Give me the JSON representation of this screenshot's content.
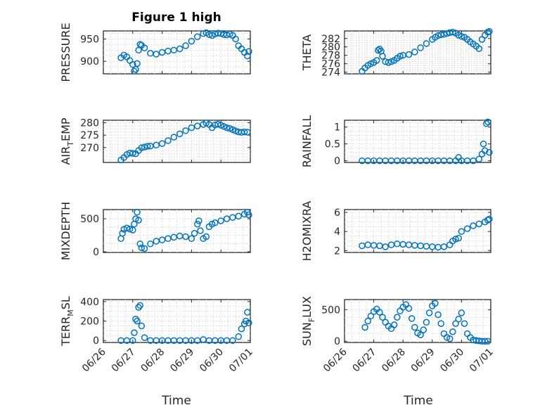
{
  "figure": {
    "title": "Figure 1 high",
    "marker_color": "#0072BD",
    "xtick_labels": [
      "06/26",
      "06/27",
      "06/28",
      "06/29",
      "06/30",
      "07/01"
    ],
    "xlabel": "Time"
  },
  "chart_data": [
    {
      "type": "scatter",
      "ylabel": "PRESSURE",
      "ylim": [
        872,
        968
      ],
      "yticks": [
        900,
        950
      ],
      "xlim": [
        0,
        5
      ],
      "x": [
        0.6,
        0.7,
        0.8,
        0.9,
        1.0,
        1.05,
        1.1,
        1.15,
        1.2,
        1.25,
        1.3,
        1.4,
        1.6,
        1.8,
        2.0,
        2.2,
        2.4,
        2.6,
        2.8,
        3.0,
        3.2,
        3.4,
        3.5,
        3.6,
        3.7,
        3.8,
        3.9,
        4.0,
        4.1,
        4.2,
        4.3,
        4.4,
        4.5,
        4.6,
        4.7,
        4.8,
        4.9,
        4.95
      ],
      "y": [
        908,
        914,
        910,
        902,
        893,
        878,
        882,
        895,
        925,
        938,
        936,
        930,
        918,
        916,
        920,
        923,
        925,
        928,
        935,
        945,
        955,
        962,
        964,
        960,
        958,
        961,
        963,
        962,
        960,
        959,
        961,
        958,
        950,
        935,
        928,
        920,
        912,
        922
      ]
    },
    {
      "type": "scatter",
      "ylabel": "THETA",
      "ylim": [
        273.6,
        283.8
      ],
      "yticks": [
        274,
        276,
        278,
        280,
        282
      ],
      "xlim": [
        0,
        5
      ],
      "x": [
        0.6,
        0.7,
        0.8,
        0.9,
        1.0,
        1.1,
        1.15,
        1.2,
        1.25,
        1.3,
        1.4,
        1.5,
        1.6,
        1.7,
        1.8,
        1.9,
        2.0,
        2.2,
        2.4,
        2.6,
        2.8,
        3.0,
        3.1,
        3.2,
        3.3,
        3.4,
        3.5,
        3.6,
        3.7,
        3.8,
        3.9,
        4.0,
        4.1,
        4.2,
        4.3,
        4.4,
        4.5,
        4.6,
        4.7,
        4.8,
        4.9,
        4.95
      ],
      "y": [
        274.2,
        275.0,
        275.6,
        276.0,
        276.3,
        276.8,
        279.2,
        279.5,
        279.0,
        277.8,
        276.5,
        276.3,
        276.5,
        276.8,
        277.3,
        277.8,
        278.0,
        278.2,
        278.8,
        279.8,
        280.8,
        281.8,
        282.3,
        282.7,
        282.9,
        283.0,
        283.2,
        283.4,
        283.5,
        283.3,
        282.8,
        282.5,
        282.3,
        281.8,
        281.2,
        280.7,
        280.2,
        279.6,
        281.8,
        282.8,
        283.5,
        283.7
      ]
    },
    {
      "type": "scatter",
      "ylabel": "AIR_TEMP",
      "ylim": [
        264,
        281
      ],
      "yticks": [
        270,
        275,
        280
      ],
      "xlim": [
        0,
        5
      ],
      "x": [
        0.6,
        0.7,
        0.8,
        0.9,
        1.0,
        1.1,
        1.2,
        1.3,
        1.4,
        1.5,
        1.6,
        1.8,
        2.0,
        2.2,
        2.4,
        2.6,
        2.8,
        3.0,
        3.2,
        3.4,
        3.5,
        3.6,
        3.7,
        3.8,
        3.9,
        4.0,
        4.1,
        4.2,
        4.3,
        4.4,
        4.5,
        4.6,
        4.7,
        4.8,
        4.9
      ],
      "y": [
        265.0,
        266.0,
        267.2,
        267.8,
        267.7,
        267.5,
        268.8,
        269.9,
        270.2,
        270.5,
        270.6,
        271.0,
        271.6,
        272.8,
        274.2,
        275.5,
        276.8,
        278.0,
        278.7,
        279.3,
        279.9,
        279.3,
        278.0,
        279.1,
        279.4,
        279.0,
        278.5,
        278.0,
        277.7,
        277.2,
        276.7,
        276.3,
        276.1,
        276.3,
        276.2
      ]
    },
    {
      "type": "scatter",
      "ylabel": "RAINFALL",
      "ylim": [
        -0.05,
        1.2
      ],
      "yticks": [
        0,
        0.5,
        1
      ],
      "xlim": [
        0,
        5
      ],
      "x": [
        0.6,
        0.8,
        1.0,
        1.2,
        1.4,
        1.6,
        1.8,
        2.0,
        2.2,
        2.4,
        2.6,
        2.8,
        3.0,
        3.2,
        3.4,
        3.6,
        3.8,
        3.9,
        4.0,
        4.2,
        4.4,
        4.6,
        4.7,
        4.75,
        4.8,
        4.85,
        4.9,
        4.95
      ],
      "y": [
        0,
        0,
        0,
        0,
        0,
        0,
        0,
        0,
        0,
        0,
        0,
        0,
        0,
        0,
        0,
        0,
        0,
        0.1,
        0,
        0,
        0,
        0.05,
        0.2,
        0.5,
        0.3,
        1.1,
        1.15,
        0.25
      ]
    },
    {
      "type": "scatter",
      "ylabel": "MIXDEPTH",
      "ylim": [
        -10,
        640
      ],
      "yticks": [
        0,
        500
      ],
      "xlim": [
        0,
        5
      ],
      "x": [
        0.6,
        0.65,
        0.7,
        0.8,
        0.9,
        1.0,
        1.05,
        1.1,
        1.15,
        1.2,
        1.25,
        1.3,
        1.4,
        1.6,
        1.8,
        2.0,
        2.2,
        2.4,
        2.6,
        2.8,
        3.0,
        3.1,
        3.2,
        3.25,
        3.3,
        3.4,
        3.5,
        3.6,
        3.7,
        3.8,
        4.0,
        4.2,
        4.4,
        4.6,
        4.8,
        4.9,
        4.95
      ],
      "y": [
        200,
        280,
        340,
        360,
        345,
        330,
        420,
        500,
        600,
        480,
        120,
        60,
        50,
        120,
        160,
        180,
        200,
        220,
        240,
        230,
        200,
        280,
        420,
        470,
        320,
        200,
        230,
        380,
        420,
        440,
        470,
        500,
        520,
        540,
        570,
        600,
        560
      ]
    },
    {
      "type": "scatter",
      "ylabel": "H2OMIXRA",
      "ylim": [
        1.8,
        6.3
      ],
      "yticks": [
        2,
        4,
        6
      ],
      "xlim": [
        0,
        5
      ],
      "x": [
        0.6,
        0.8,
        1.0,
        1.2,
        1.4,
        1.6,
        1.8,
        2.0,
        2.2,
        2.4,
        2.6,
        2.8,
        3.0,
        3.2,
        3.4,
        3.6,
        3.7,
        3.8,
        3.9,
        4.0,
        4.2,
        4.4,
        4.6,
        4.8,
        4.9,
        4.95
      ],
      "y": [
        2.5,
        2.6,
        2.55,
        2.5,
        2.4,
        2.6,
        2.7,
        2.65,
        2.6,
        2.55,
        2.5,
        2.45,
        2.4,
        2.35,
        2.4,
        2.6,
        3.0,
        3.2,
        3.3,
        4.0,
        4.3,
        4.6,
        4.8,
        5.0,
        5.2,
        5.3
      ]
    },
    {
      "type": "scatter",
      "ylabel": "TERR_MSL",
      "ylim": [
        -20,
        420
      ],
      "yticks": [
        0,
        200,
        400
      ],
      "xlim": [
        0,
        5
      ],
      "x": [
        0.6,
        0.8,
        1.0,
        1.05,
        1.1,
        1.15,
        1.2,
        1.25,
        1.3,
        1.4,
        1.6,
        1.8,
        2.0,
        2.2,
        2.4,
        2.6,
        2.8,
        3.0,
        3.2,
        3.4,
        3.6,
        3.8,
        4.0,
        4.2,
        4.4,
        4.6,
        4.7,
        4.8,
        4.85,
        4.9,
        4.95
      ],
      "y": [
        0,
        0,
        0,
        80,
        220,
        200,
        340,
        360,
        150,
        30,
        0,
        0,
        0,
        0,
        0,
        0,
        0,
        0,
        0,
        10,
        0,
        0,
        0,
        0,
        0,
        40,
        120,
        170,
        200,
        290,
        180
      ]
    },
    {
      "type": "scatter",
      "ylabel": "SUN_FLUX",
      "ylim": [
        -20,
        660
      ],
      "yticks": [
        0,
        500
      ],
      "xlim": [
        0,
        5
      ],
      "x": [
        0.7,
        0.8,
        0.9,
        1.0,
        1.1,
        1.2,
        1.3,
        1.4,
        1.5,
        1.6,
        1.7,
        1.8,
        1.9,
        2.0,
        2.1,
        2.2,
        2.3,
        2.4,
        2.5,
        2.6,
        2.7,
        2.8,
        2.9,
        3.0,
        3.1,
        3.2,
        3.3,
        3.4,
        3.5,
        3.6,
        3.7,
        3.8,
        3.9,
        4.0,
        4.1,
        4.2,
        4.3,
        4.4,
        4.5,
        4.6,
        4.7,
        4.8,
        4.9
      ],
      "y": [
        220,
        320,
        400,
        470,
        510,
        460,
        380,
        300,
        240,
        200,
        260,
        380,
        480,
        540,
        580,
        520,
        360,
        220,
        130,
        100,
        180,
        300,
        450,
        560,
        600,
        420,
        280,
        120,
        60,
        40,
        150,
        280,
        350,
        450,
        280,
        120,
        60,
        20,
        10,
        5,
        0,
        0,
        0
      ]
    }
  ]
}
